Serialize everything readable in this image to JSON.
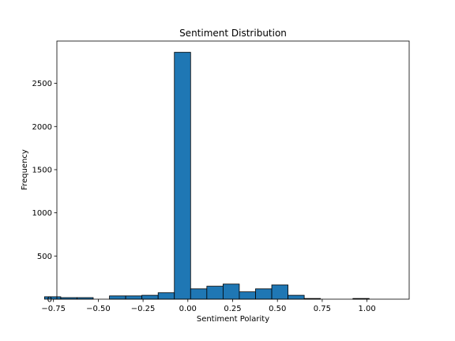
{
  "chart_data": {
    "type": "bar",
    "title": "Sentiment Distribution",
    "xlabel": "Sentiment Polarity",
    "ylabel": "Frequency",
    "bar_color": "#1f77b4",
    "edge_color": "#000000",
    "xlim": [
      -0.9,
      1.1
    ],
    "ylim": [
      0,
      2990
    ],
    "bins": [
      {
        "x0": -0.8,
        "x1": -0.7,
        "count": 28
      },
      {
        "x0": -0.7,
        "x1": -0.6,
        "count": 18
      },
      {
        "x0": -0.6,
        "x1": -0.5,
        "count": 18
      },
      {
        "x0": -0.5,
        "x1": -0.4,
        "count": 0
      },
      {
        "x0": -0.4,
        "x1": -0.3,
        "count": 38
      },
      {
        "x0": -0.3,
        "x1": -0.2,
        "count": 38
      },
      {
        "x0": -0.2,
        "x1": -0.1,
        "count": 45
      },
      {
        "x0": -0.1,
        "x1": 0.0,
        "count": 75
      },
      {
        "x0": 0.0,
        "x1": 0.1,
        "count": 2860
      },
      {
        "x0": 0.1,
        "x1": 0.2,
        "count": 120
      },
      {
        "x0": 0.2,
        "x1": 0.3,
        "count": 150
      },
      {
        "x0": 0.3,
        "x1": 0.4,
        "count": 175
      },
      {
        "x0": 0.4,
        "x1": 0.5,
        "count": 85
      },
      {
        "x0": 0.5,
        "x1": 0.6,
        "count": 120
      },
      {
        "x0": 0.6,
        "x1": 0.7,
        "count": 165
      },
      {
        "x0": 0.7,
        "x1": 0.8,
        "count": 45
      },
      {
        "x0": 0.8,
        "x1": 0.9,
        "count": 8
      },
      {
        "x0": 0.9,
        "x1": 1.0,
        "count": 0
      },
      {
        "x0": 1.0,
        "x1": 1.1,
        "count": 0
      },
      {
        "x0": 1.1,
        "x1": 1.2,
        "count": 8
      }
    ],
    "x_ticks": [
      {
        "value": -0.75,
        "label": "−0.75"
      },
      {
        "value": -0.5,
        "label": "−0.50"
      },
      {
        "value": -0.25,
        "label": "−0.25"
      },
      {
        "value": 0.0,
        "label": "0.00"
      },
      {
        "value": 0.25,
        "label": "0.25"
      },
      {
        "value": 0.5,
        "label": "0.50"
      },
      {
        "value": 0.75,
        "label": "0.75"
      },
      {
        "value": 1.0,
        "label": "1.00"
      }
    ],
    "y_ticks": [
      {
        "value": 0,
        "label": "0"
      },
      {
        "value": 500,
        "label": "500"
      },
      {
        "value": 1000,
        "label": "1000"
      },
      {
        "value": 1500,
        "label": "1500"
      },
      {
        "value": 2000,
        "label": "2000"
      },
      {
        "value": 2500,
        "label": "2500"
      }
    ]
  }
}
